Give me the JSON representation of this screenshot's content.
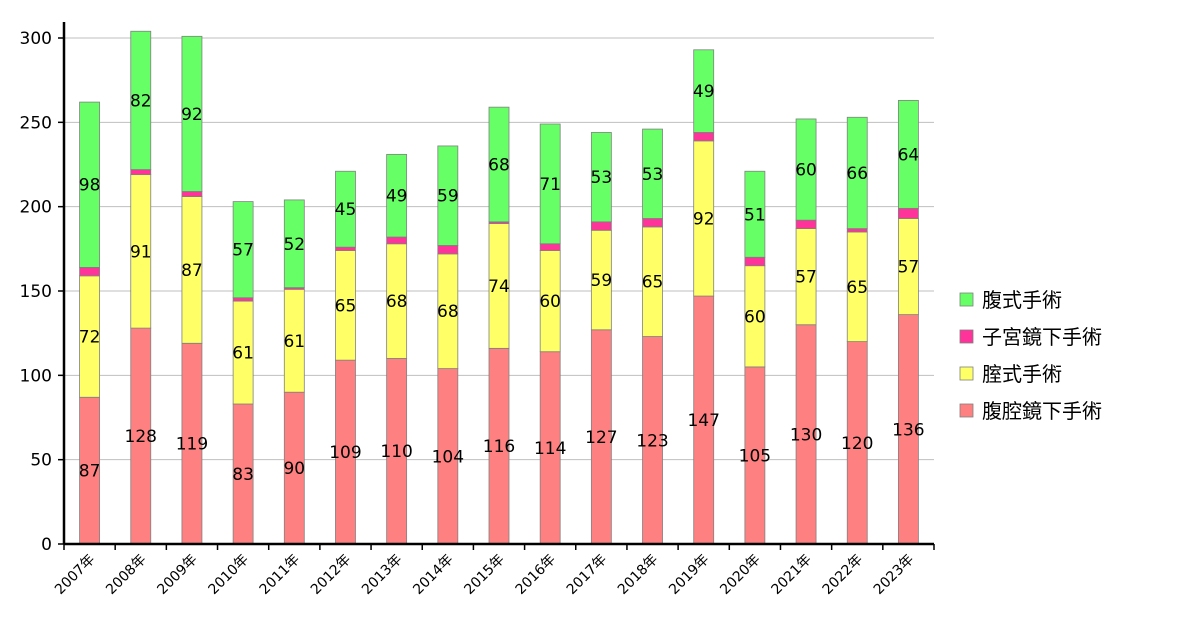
{
  "chart_data": {
    "type": "bar",
    "stacked": true,
    "categories": [
      "2007年",
      "2008年",
      "2009年",
      "2010年",
      "2011年",
      "2012年",
      "2013年",
      "2014年",
      "2015年",
      "2016年",
      "2017年",
      "2018年",
      "2019年",
      "2020年",
      "2021年",
      "2022年",
      "2023年"
    ],
    "series": [
      {
        "name": "腹腔鏡下手術",
        "color": "#ff8080",
        "labels": true,
        "values": [
          87,
          128,
          119,
          83,
          90,
          109,
          110,
          104,
          116,
          114,
          127,
          123,
          147,
          105,
          130,
          120,
          136
        ]
      },
      {
        "name": "腟式手術",
        "color": "#ffff66",
        "labels": true,
        "values": [
          72,
          91,
          87,
          61,
          61,
          65,
          68,
          68,
          74,
          60,
          59,
          65,
          92,
          60,
          57,
          65,
          57
        ]
      },
      {
        "name": "子宮鏡下手術",
        "color": "#ff3399",
        "labels": false,
        "values": [
          5,
          3,
          3,
          2,
          1,
          2,
          4,
          5,
          1,
          4,
          5,
          5,
          5,
          5,
          5,
          2,
          6
        ]
      },
      {
        "name": "腹式手術",
        "color": "#66ff66",
        "labels": true,
        "values": [
          98,
          82,
          92,
          57,
          52,
          45,
          49,
          59,
          68,
          71,
          53,
          53,
          49,
          51,
          60,
          66,
          64
        ]
      }
    ],
    "ylim": [
      0,
      300
    ],
    "yticks": [
      0,
      50,
      100,
      150,
      200,
      250,
      300
    ],
    "grid": true,
    "legend": "right",
    "legend_order": [
      "腹式手術",
      "子宮鏡下手術",
      "腟式手術",
      "腹腔鏡下手術"
    ]
  }
}
